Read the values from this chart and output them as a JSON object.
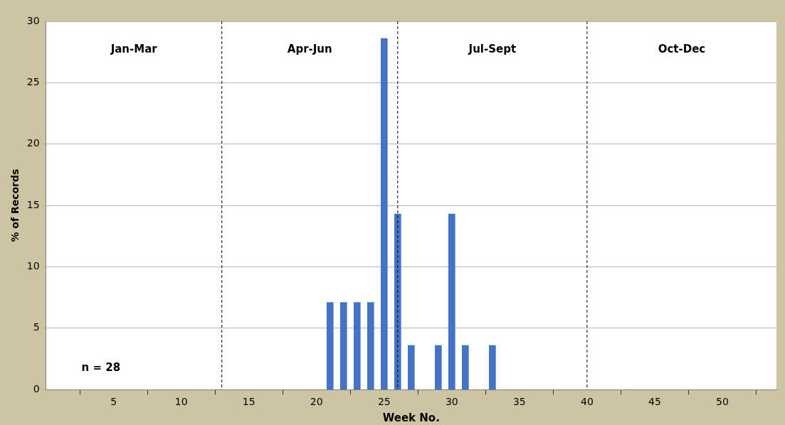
{
  "chart_data": {
    "type": "bar",
    "xlabel": "Week No.",
    "ylabel": "% of Records",
    "x": [
      21,
      22,
      23,
      24,
      25,
      26,
      27,
      29,
      30,
      31,
      33
    ],
    "values": [
      7.1,
      7.1,
      7.1,
      7.1,
      28.6,
      14.3,
      3.6,
      3.6,
      14.3,
      3.6,
      3.6
    ],
    "color": "#4472c4",
    "xlim": [
      0,
      54
    ],
    "xticks": [
      5,
      10,
      15,
      20,
      25,
      30,
      35,
      40,
      45,
      50
    ],
    "ylim": [
      0,
      30
    ],
    "yticks": [
      0,
      5,
      10,
      15,
      20,
      25,
      30
    ],
    "grid": "y",
    "ref_lines": [
      {
        "axis": "x",
        "value": 13,
        "line_style": "dashed",
        "color": "#000000"
      },
      {
        "axis": "x",
        "value": 26,
        "line_style": "dashed",
        "color": "#000000"
      },
      {
        "axis": "x",
        "value": 40,
        "line_style": "dashed",
        "color": "#000000"
      }
    ],
    "annotations": [
      "Jan-Mar",
      "Apr-Jun",
      "Jul-Sept",
      "Oct-Dec",
      "n = 28"
    ]
  }
}
